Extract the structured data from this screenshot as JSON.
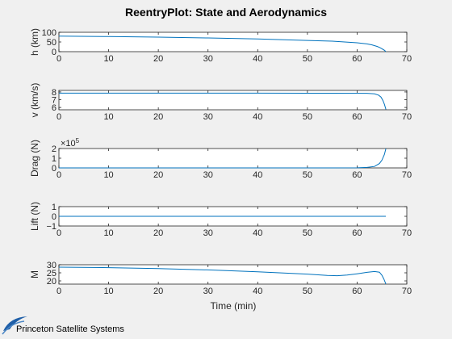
{
  "figure": {
    "title": "ReentryPlot: State and Aerodynamics",
    "xlabel": "Time (min)",
    "logo_text": "Princeton Satellite Systems",
    "line_color": "#0072bd"
  },
  "chart_data": [
    {
      "type": "line",
      "ylabel": "h (km)",
      "xlim": [
        0,
        70
      ],
      "ylim": [
        0,
        100
      ],
      "xticks": [
        "0",
        "10",
        "20",
        "30",
        "40",
        "50",
        "60",
        "70"
      ],
      "yticks": [
        "0",
        "50",
        "100"
      ],
      "grid": false,
      "x": [
        0,
        10,
        20,
        30,
        40,
        50,
        55,
        60,
        62,
        63,
        64,
        64.5,
        65,
        65.5,
        65.8
      ],
      "y": [
        80,
        78,
        75,
        71,
        66,
        58,
        54,
        46,
        40,
        35,
        27,
        22,
        15,
        7,
        0
      ]
    },
    {
      "type": "line",
      "ylabel": "v (km/s)",
      "xlim": [
        0,
        70
      ],
      "ylim": [
        5.7,
        8.2
      ],
      "xticks": [
        "0",
        "10",
        "20",
        "30",
        "40",
        "50",
        "60",
        "70"
      ],
      "yticks": [
        "6",
        "7",
        "8"
      ],
      "grid": false,
      "x": [
        0,
        20,
        40,
        55,
        62,
        63.5,
        64.3,
        64.8,
        65.2,
        65.5,
        65.8
      ],
      "y": [
        7.85,
        7.85,
        7.85,
        7.84,
        7.82,
        7.75,
        7.6,
        7.35,
        6.9,
        6.4,
        5.75
      ]
    },
    {
      "type": "line",
      "ylabel": "Drag (N)",
      "exponent": "×10",
      "exponent_power": "5",
      "xlim": [
        0,
        70
      ],
      "ylim": [
        0,
        2
      ],
      "xticks": [
        "0",
        "10",
        "20",
        "30",
        "40",
        "50",
        "60",
        "70"
      ],
      "yticks": [
        "0",
        "1",
        "2"
      ],
      "grid": false,
      "x": [
        0,
        20,
        40,
        55,
        60,
        62,
        63.5,
        64.5,
        65,
        65.5,
        65.8
      ],
      "y": [
        0,
        0,
        0,
        0,
        0.01,
        0.05,
        0.15,
        0.45,
        0.8,
        1.4,
        2.0
      ]
    },
    {
      "type": "line",
      "ylabel": "Lift (N)",
      "xlim": [
        0,
        70
      ],
      "ylim": [
        -1,
        1
      ],
      "xticks": [
        "0",
        "10",
        "20",
        "30",
        "40",
        "50",
        "60",
        "70"
      ],
      "yticks": [
        "-1",
        "0",
        "1"
      ],
      "grid": false,
      "x": [
        0,
        65.8
      ],
      "y": [
        0,
        0
      ]
    },
    {
      "type": "line",
      "ylabel": "M",
      "xlim": [
        0,
        70
      ],
      "ylim": [
        18,
        30
      ],
      "xticks": [
        "0",
        "10",
        "20",
        "30",
        "40",
        "50",
        "60",
        "70"
      ],
      "yticks": [
        "20",
        "25",
        "30"
      ],
      "grid": false,
      "x": [
        0,
        10,
        20,
        30,
        40,
        50,
        54,
        56,
        58,
        60,
        62,
        63.5,
        64.5,
        65,
        65.4,
        65.8
      ],
      "y": [
        28.5,
        28.2,
        27.6,
        26.8,
        25.6,
        24.2,
        23.4,
        23.2,
        23.6,
        24.4,
        25.3,
        25.8,
        25.4,
        23.5,
        21,
        18
      ]
    }
  ]
}
